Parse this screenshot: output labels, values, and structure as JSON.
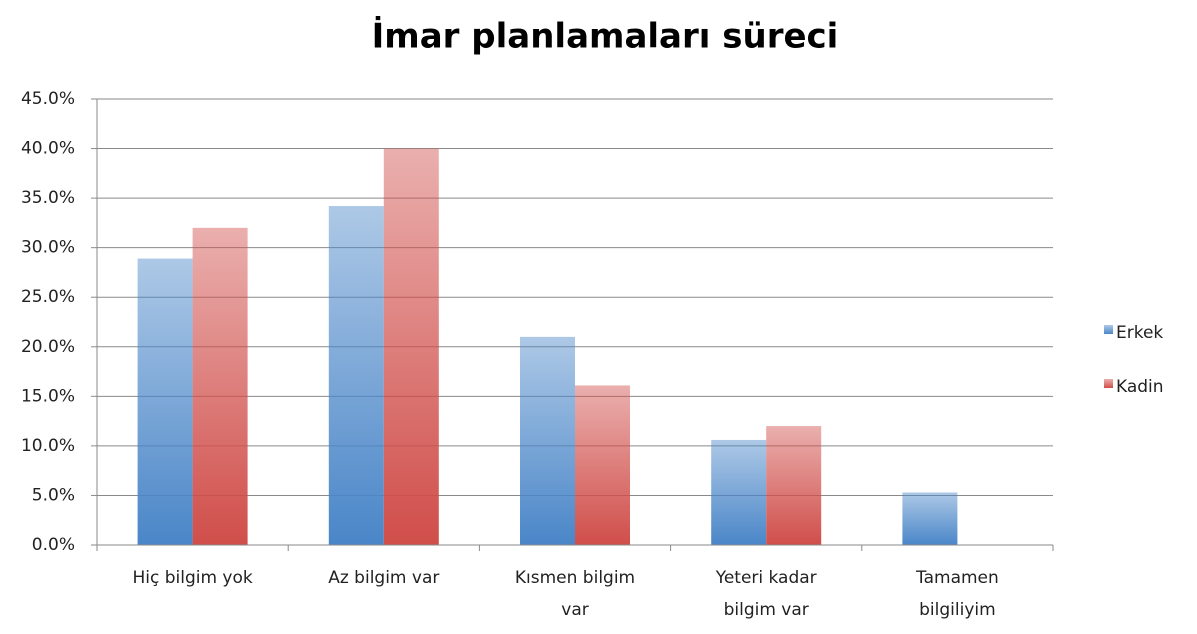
{
  "chart_data": {
    "type": "bar",
    "title": "İmar planlamaları süreci",
    "categories": [
      "Hiç bilgim yok",
      "Az bilgim var",
      "Kısmen bilgim var",
      "Yeteri kadar bilgim var",
      "Tamamen bilgiliyim"
    ],
    "series": [
      {
        "name": "Erkek",
        "color": "#4a86c8",
        "values": [
          28.9,
          34.2,
          21.0,
          10.6,
          5.3
        ]
      },
      {
        "name": "Kadin",
        "color": "#d04e4a",
        "values": [
          32.0,
          40.0,
          16.1,
          12.0,
          0
        ]
      }
    ],
    "ylim": [
      0,
      45
    ],
    "yticks": [
      {
        "value": 0,
        "label": "0.0%"
      },
      {
        "value": 5,
        "label": "5.0%"
      },
      {
        "value": 10,
        "label": "10.0%"
      },
      {
        "value": 15,
        "label": "15.0%"
      },
      {
        "value": 20,
        "label": "20.0%"
      },
      {
        "value": 25,
        "label": "25.0%"
      },
      {
        "value": 30,
        "label": "30.0%"
      },
      {
        "value": 35,
        "label": "35.0%"
      },
      {
        "value": 40,
        "label": "40.0%"
      },
      {
        "value": 45,
        "label": "45.0%"
      }
    ],
    "grid": true,
    "legend": "right"
  }
}
